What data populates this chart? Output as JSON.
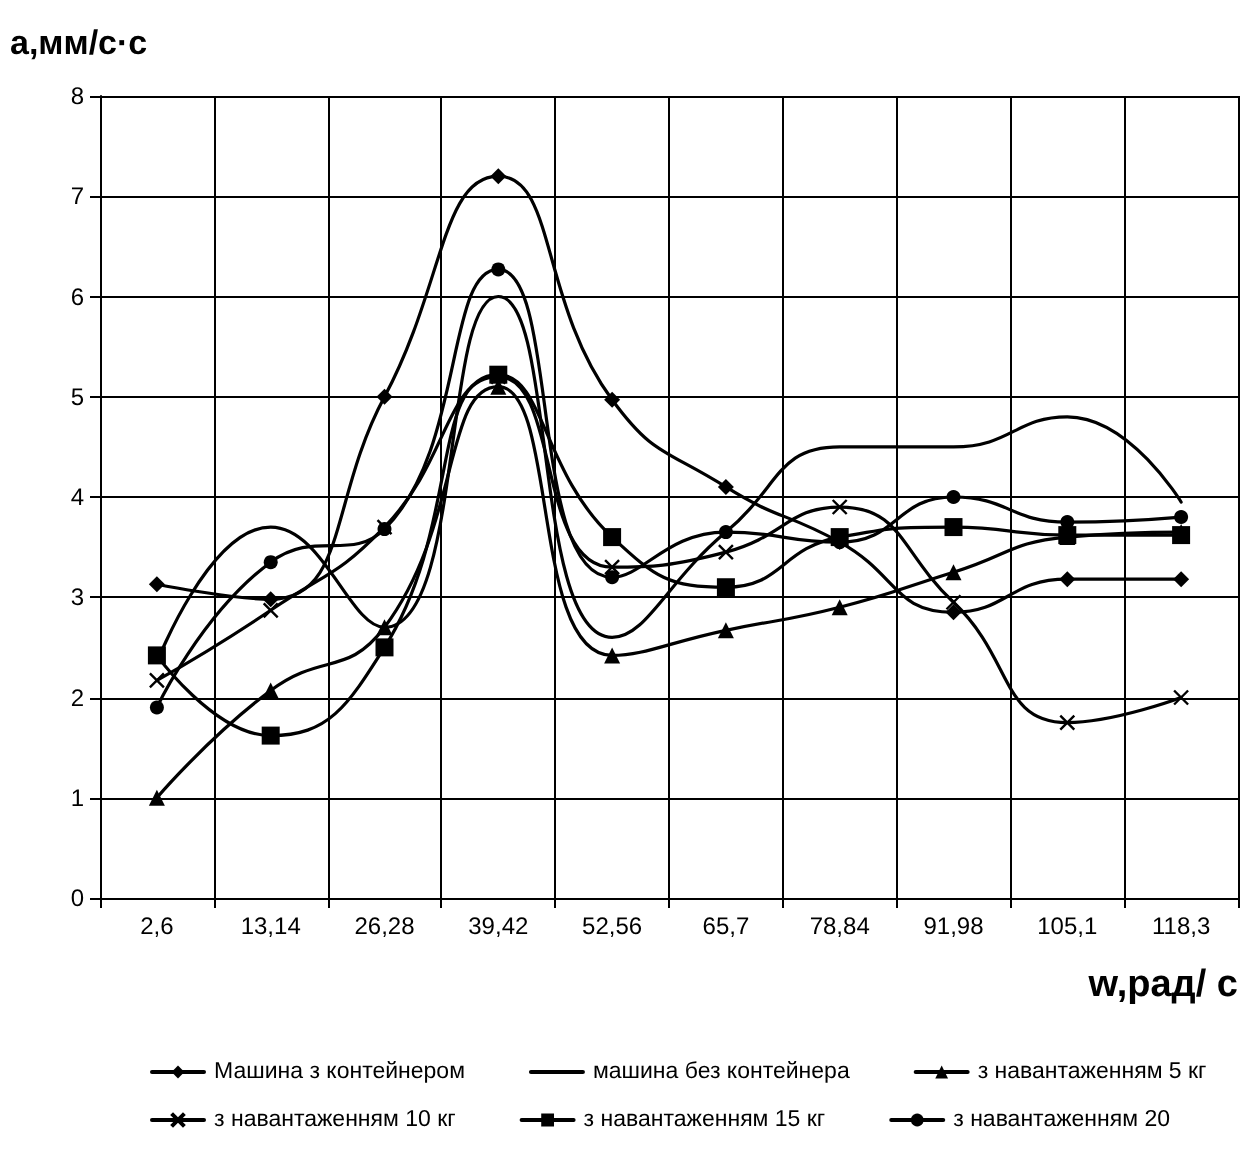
{
  "chart_data": {
    "type": "line",
    "ylabel": "а,мм/с·с",
    "xlabel": "w,рад/ с",
    "categories": [
      "2,6",
      "13,14",
      "26,28",
      "39,42",
      "52,56",
      "65,7",
      "78,84",
      "91,98",
      "105,1",
      "118,3"
    ],
    "ylim": [
      0,
      8
    ],
    "yticks": [
      0,
      1,
      2,
      3,
      4,
      5,
      6,
      7,
      8
    ],
    "grid": true,
    "legend": "bottom",
    "series": [
      {
        "name": "Машина з контейнером",
        "color": "#000000",
        "marker": "diamond",
        "values": [
          3.13,
          2.98,
          5.0,
          7.2,
          4.97,
          4.1,
          3.55,
          2.85,
          3.18,
          3.18
        ]
      },
      {
        "name": "машина без контейнера",
        "color": "#000000",
        "marker": "none",
        "values": [
          2.35,
          3.7,
          2.7,
          6.0,
          2.6,
          3.65,
          4.5,
          4.5,
          4.8,
          3.95
        ]
      },
      {
        "name": "з навантаженням 5 кг",
        "color": "#000000",
        "marker": "triangle",
        "values": [
          1.0,
          2.07,
          2.7,
          5.1,
          2.42,
          2.67,
          2.9,
          3.25,
          3.6,
          3.65
        ]
      },
      {
        "name": "з навантаженням 10 кг",
        "color": "#000000",
        "marker": "cross",
        "values": [
          2.17,
          2.87,
          3.7,
          5.2,
          3.3,
          3.45,
          3.9,
          2.95,
          1.75,
          2.0
        ]
      },
      {
        "name": "з навантаженням 15 кг",
        "color": "#000000",
        "marker": "square",
        "values": [
          2.42,
          1.62,
          2.5,
          5.22,
          3.6,
          3.1,
          3.6,
          3.7,
          3.62,
          3.62
        ]
      },
      {
        "name": "з навантаженням 20",
        "color": "#000000",
        "marker": "circle",
        "values": [
          1.9,
          3.35,
          3.68,
          6.27,
          3.2,
          3.65,
          3.55,
          4.0,
          3.75,
          3.8
        ]
      }
    ]
  }
}
